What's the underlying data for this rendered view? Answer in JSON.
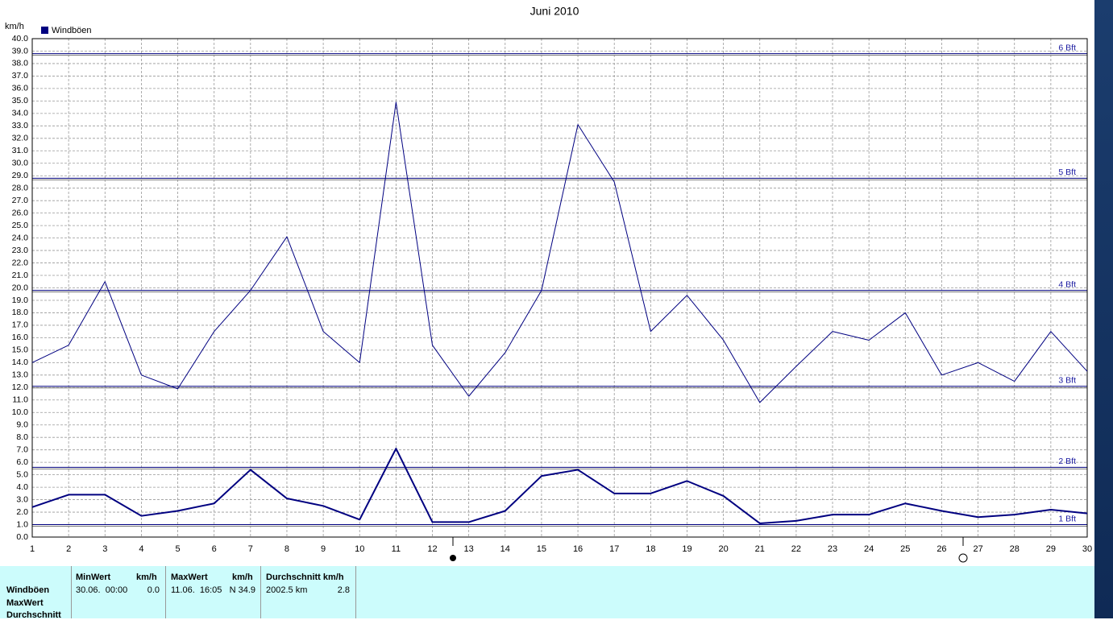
{
  "chart_data": {
    "type": "line",
    "title": "Juni 2010",
    "ylabel": "km/h",
    "x": [
      1,
      2,
      3,
      4,
      5,
      6,
      7,
      8,
      9,
      10,
      11,
      12,
      13,
      14,
      15,
      16,
      17,
      18,
      19,
      20,
      21,
      22,
      23,
      24,
      25,
      26,
      27,
      28,
      29,
      30
    ],
    "xlim": [
      1,
      30
    ],
    "xticks": [
      1,
      2,
      3,
      4,
      5,
      6,
      7,
      8,
      9,
      10,
      11,
      12,
      13,
      14,
      15,
      16,
      17,
      18,
      19,
      20,
      21,
      22,
      23,
      24,
      25,
      26,
      27,
      28,
      29,
      30
    ],
    "ylim": [
      0,
      40
    ],
    "yticks": [
      {
        "value": 0,
        "label": "0.0"
      },
      {
        "value": 1,
        "label": "1.0"
      },
      {
        "value": 2,
        "label": "2.0"
      },
      {
        "value": 3,
        "label": "3.0"
      },
      {
        "value": 4,
        "label": "4.0"
      },
      {
        "value": 5,
        "label": "5.0"
      },
      {
        "value": 6,
        "label": "6.0"
      },
      {
        "value": 7,
        "label": "7.0"
      },
      {
        "value": 8,
        "label": "8.0"
      },
      {
        "value": 9,
        "label": "9.0"
      },
      {
        "value": 10,
        "label": "10.0"
      },
      {
        "value": 11,
        "label": "11.0"
      },
      {
        "value": 12,
        "label": "12.0"
      },
      {
        "value": 13,
        "label": "13.0"
      },
      {
        "value": 14,
        "label": "14.0"
      },
      {
        "value": 15,
        "label": "15.0"
      },
      {
        "value": 16,
        "label": "16.0"
      },
      {
        "value": 17,
        "label": "17.0"
      },
      {
        "value": 18,
        "label": "18.0"
      },
      {
        "value": 19,
        "label": "19.0"
      },
      {
        "value": 20,
        "label": "20.0"
      },
      {
        "value": 21,
        "label": "21.0"
      },
      {
        "value": 22,
        "label": "22.0"
      },
      {
        "value": 23,
        "label": "23.0"
      },
      {
        "value": 24,
        "label": "24.0"
      },
      {
        "value": 25,
        "label": "25.0"
      },
      {
        "value": 26,
        "label": "26.0"
      },
      {
        "value": 27,
        "label": "27.0"
      },
      {
        "value": 28,
        "label": "28.0"
      },
      {
        "value": 29,
        "label": "29.0"
      },
      {
        "value": 30,
        "label": "30.0"
      },
      {
        "value": 31,
        "label": "31.0"
      },
      {
        "value": 32,
        "label": "32.0"
      },
      {
        "value": 33,
        "label": "33.0"
      },
      {
        "value": 34,
        "label": "34.0"
      },
      {
        "value": 35,
        "label": "35.0"
      },
      {
        "value": 36,
        "label": "36.0"
      },
      {
        "value": 37,
        "label": "37.0"
      },
      {
        "value": 38,
        "label": "38.0"
      },
      {
        "value": 39,
        "label": "39.0"
      },
      {
        "value": 40,
        "label": "40.0"
      }
    ],
    "grid": true,
    "series": [
      {
        "name": "Windböen",
        "color": "#000080",
        "width": 1,
        "values": [
          14.0,
          15.4,
          20.5,
          13.0,
          11.9,
          16.5,
          19.8,
          24.1,
          16.5,
          14.0,
          34.9,
          15.4,
          11.3,
          14.8,
          19.8,
          33.1,
          28.5,
          16.5,
          19.4,
          15.8,
          10.8,
          13.7,
          16.5,
          15.8,
          18.0,
          13.0,
          14.0,
          12.5,
          16.5,
          13.3
        ]
      },
      {
        "color": "#000080",
        "width": 2,
        "values": [
          2.4,
          3.4,
          3.4,
          1.7,
          2.1,
          2.7,
          5.4,
          3.1,
          2.5,
          1.4,
          7.1,
          1.2,
          1.2,
          2.1,
          4.9,
          5.4,
          3.5,
          3.5,
          4.5,
          3.3,
          1.1,
          1.3,
          1.8,
          1.8,
          2.7,
          2.1,
          1.6,
          1.8,
          2.2,
          1.9
        ]
      }
    ],
    "reference_lines": [
      {
        "value": 38.8,
        "label": "6 Bft"
      },
      {
        "value": 28.8,
        "label": "5 Bft"
      },
      {
        "value": 19.8,
        "label": "4 Bft"
      },
      {
        "value": 12.1,
        "label": "3 Bft"
      },
      {
        "value": 5.6,
        "label": "2 Bft"
      },
      {
        "value": 1.0,
        "label": "1 Bft"
      }
    ]
  },
  "stats": {
    "row_labels": [
      "Windböen",
      "MaxWert",
      "Durchschnitt"
    ],
    "columns": [
      {
        "header": "MinWert",
        "unit": "km/h",
        "cells": [
          "30.06.  00:00",
          "0.0"
        ]
      },
      {
        "header": "MaxWert",
        "unit": "km/h",
        "cells": [
          "11.06.  16:05",
          "N 34.9"
        ]
      },
      {
        "header": "Durchschnitt km/h",
        "cells": [
          "2002.5 km",
          "2.8"
        ]
      }
    ]
  }
}
